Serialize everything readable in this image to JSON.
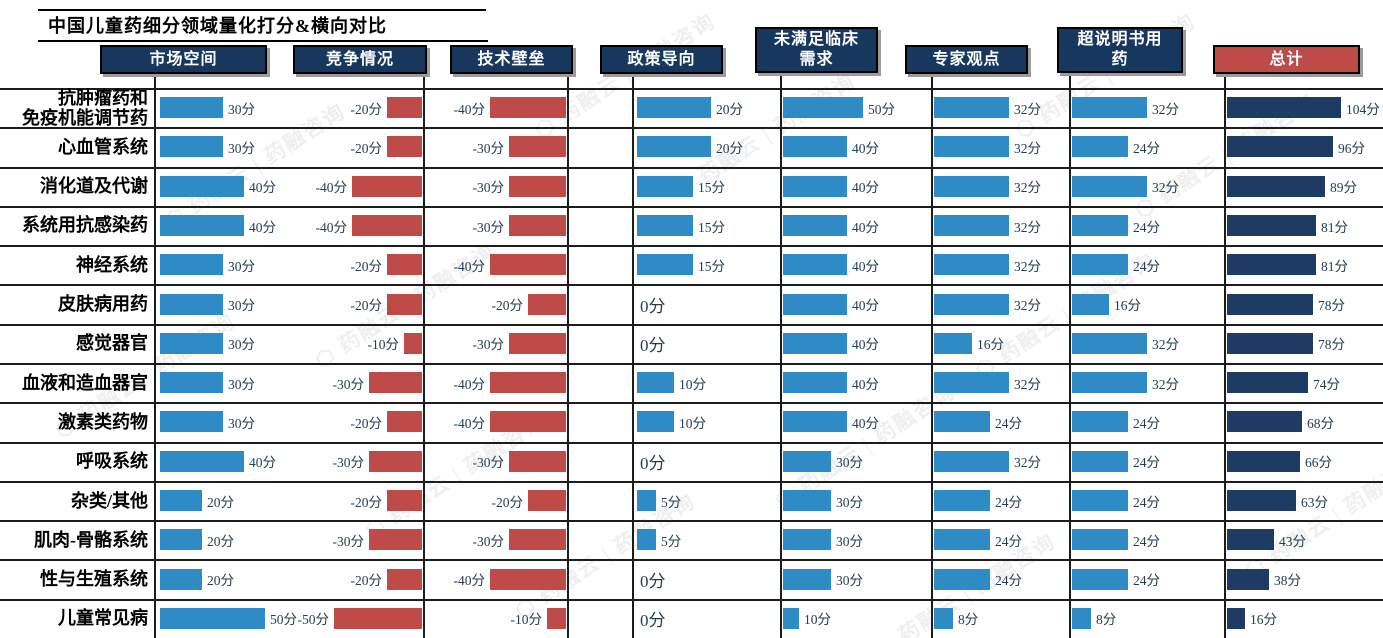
{
  "watermark_text": "⬡ 药融云 | 药融咨询",
  "chart_data": {
    "type": "bar",
    "orientation": "horizontal",
    "title": "中国儿童药细分领域量化打分&横向对比",
    "value_suffix": "分",
    "legend_position": "none",
    "grid": true,
    "columns": [
      "市场空间",
      "竞争情况",
      "技术壁垒",
      "政策导向",
      "未满足临床\n需求",
      "专家观点",
      "超说明书用\n药",
      "总计"
    ],
    "categories": [
      "抗肿瘤药和\n免疫机能调节药",
      "心血管系统",
      "消化道及代谢",
      "系统用抗感染药",
      "神经系统",
      "皮肤病用药",
      "感觉器官",
      "血液和造血器官",
      "激素类药物",
      "呼吸系统",
      "杂类/其他",
      "肌肉-骨骼系统",
      "性与生殖系统",
      "儿童常见病"
    ],
    "series": [
      {
        "name": "市场空间",
        "values": [
          30,
          30,
          40,
          40,
          30,
          30,
          30,
          30,
          30,
          40,
          20,
          20,
          20,
          50
        ]
      },
      {
        "name": "竞争情况",
        "values": [
          -20,
          -20,
          -40,
          -40,
          -20,
          -20,
          -10,
          -30,
          -20,
          -30,
          -20,
          -30,
          -20,
          -50
        ]
      },
      {
        "name": "技术壁垒",
        "values": [
          -40,
          -30,
          -30,
          -30,
          -40,
          -20,
          -30,
          -40,
          -40,
          -30,
          -20,
          -30,
          -40,
          -10
        ]
      },
      {
        "name": "政策导向",
        "values": [
          20,
          20,
          15,
          15,
          15,
          0,
          0,
          10,
          10,
          0,
          5,
          5,
          0,
          0
        ]
      },
      {
        "name": "未满足临床需求",
        "values": [
          50,
          40,
          40,
          40,
          40,
          40,
          40,
          40,
          40,
          30,
          30,
          30,
          30,
          10
        ]
      },
      {
        "name": "专家观点",
        "values": [
          32,
          32,
          32,
          32,
          32,
          32,
          16,
          32,
          24,
          32,
          24,
          24,
          24,
          8
        ]
      },
      {
        "name": "超说明书用药",
        "values": [
          32,
          24,
          32,
          24,
          24,
          16,
          32,
          32,
          24,
          24,
          24,
          24,
          24,
          8
        ]
      },
      {
        "name": "总计",
        "values": [
          104,
          96,
          89,
          81,
          81,
          78,
          78,
          74,
          68,
          66,
          63,
          43,
          38,
          16
        ]
      }
    ],
    "colors": {
      "positive_bar": "#2E8BC6",
      "negative_bar": "#BE4B48",
      "total_bar": "#1E3B63",
      "header_bg": "#17375E",
      "header_total_bg": "#BE4B48",
      "header_text": "#FFFFFF",
      "value_text": "#253C55",
      "grid_line": "#1C1C1C"
    }
  }
}
